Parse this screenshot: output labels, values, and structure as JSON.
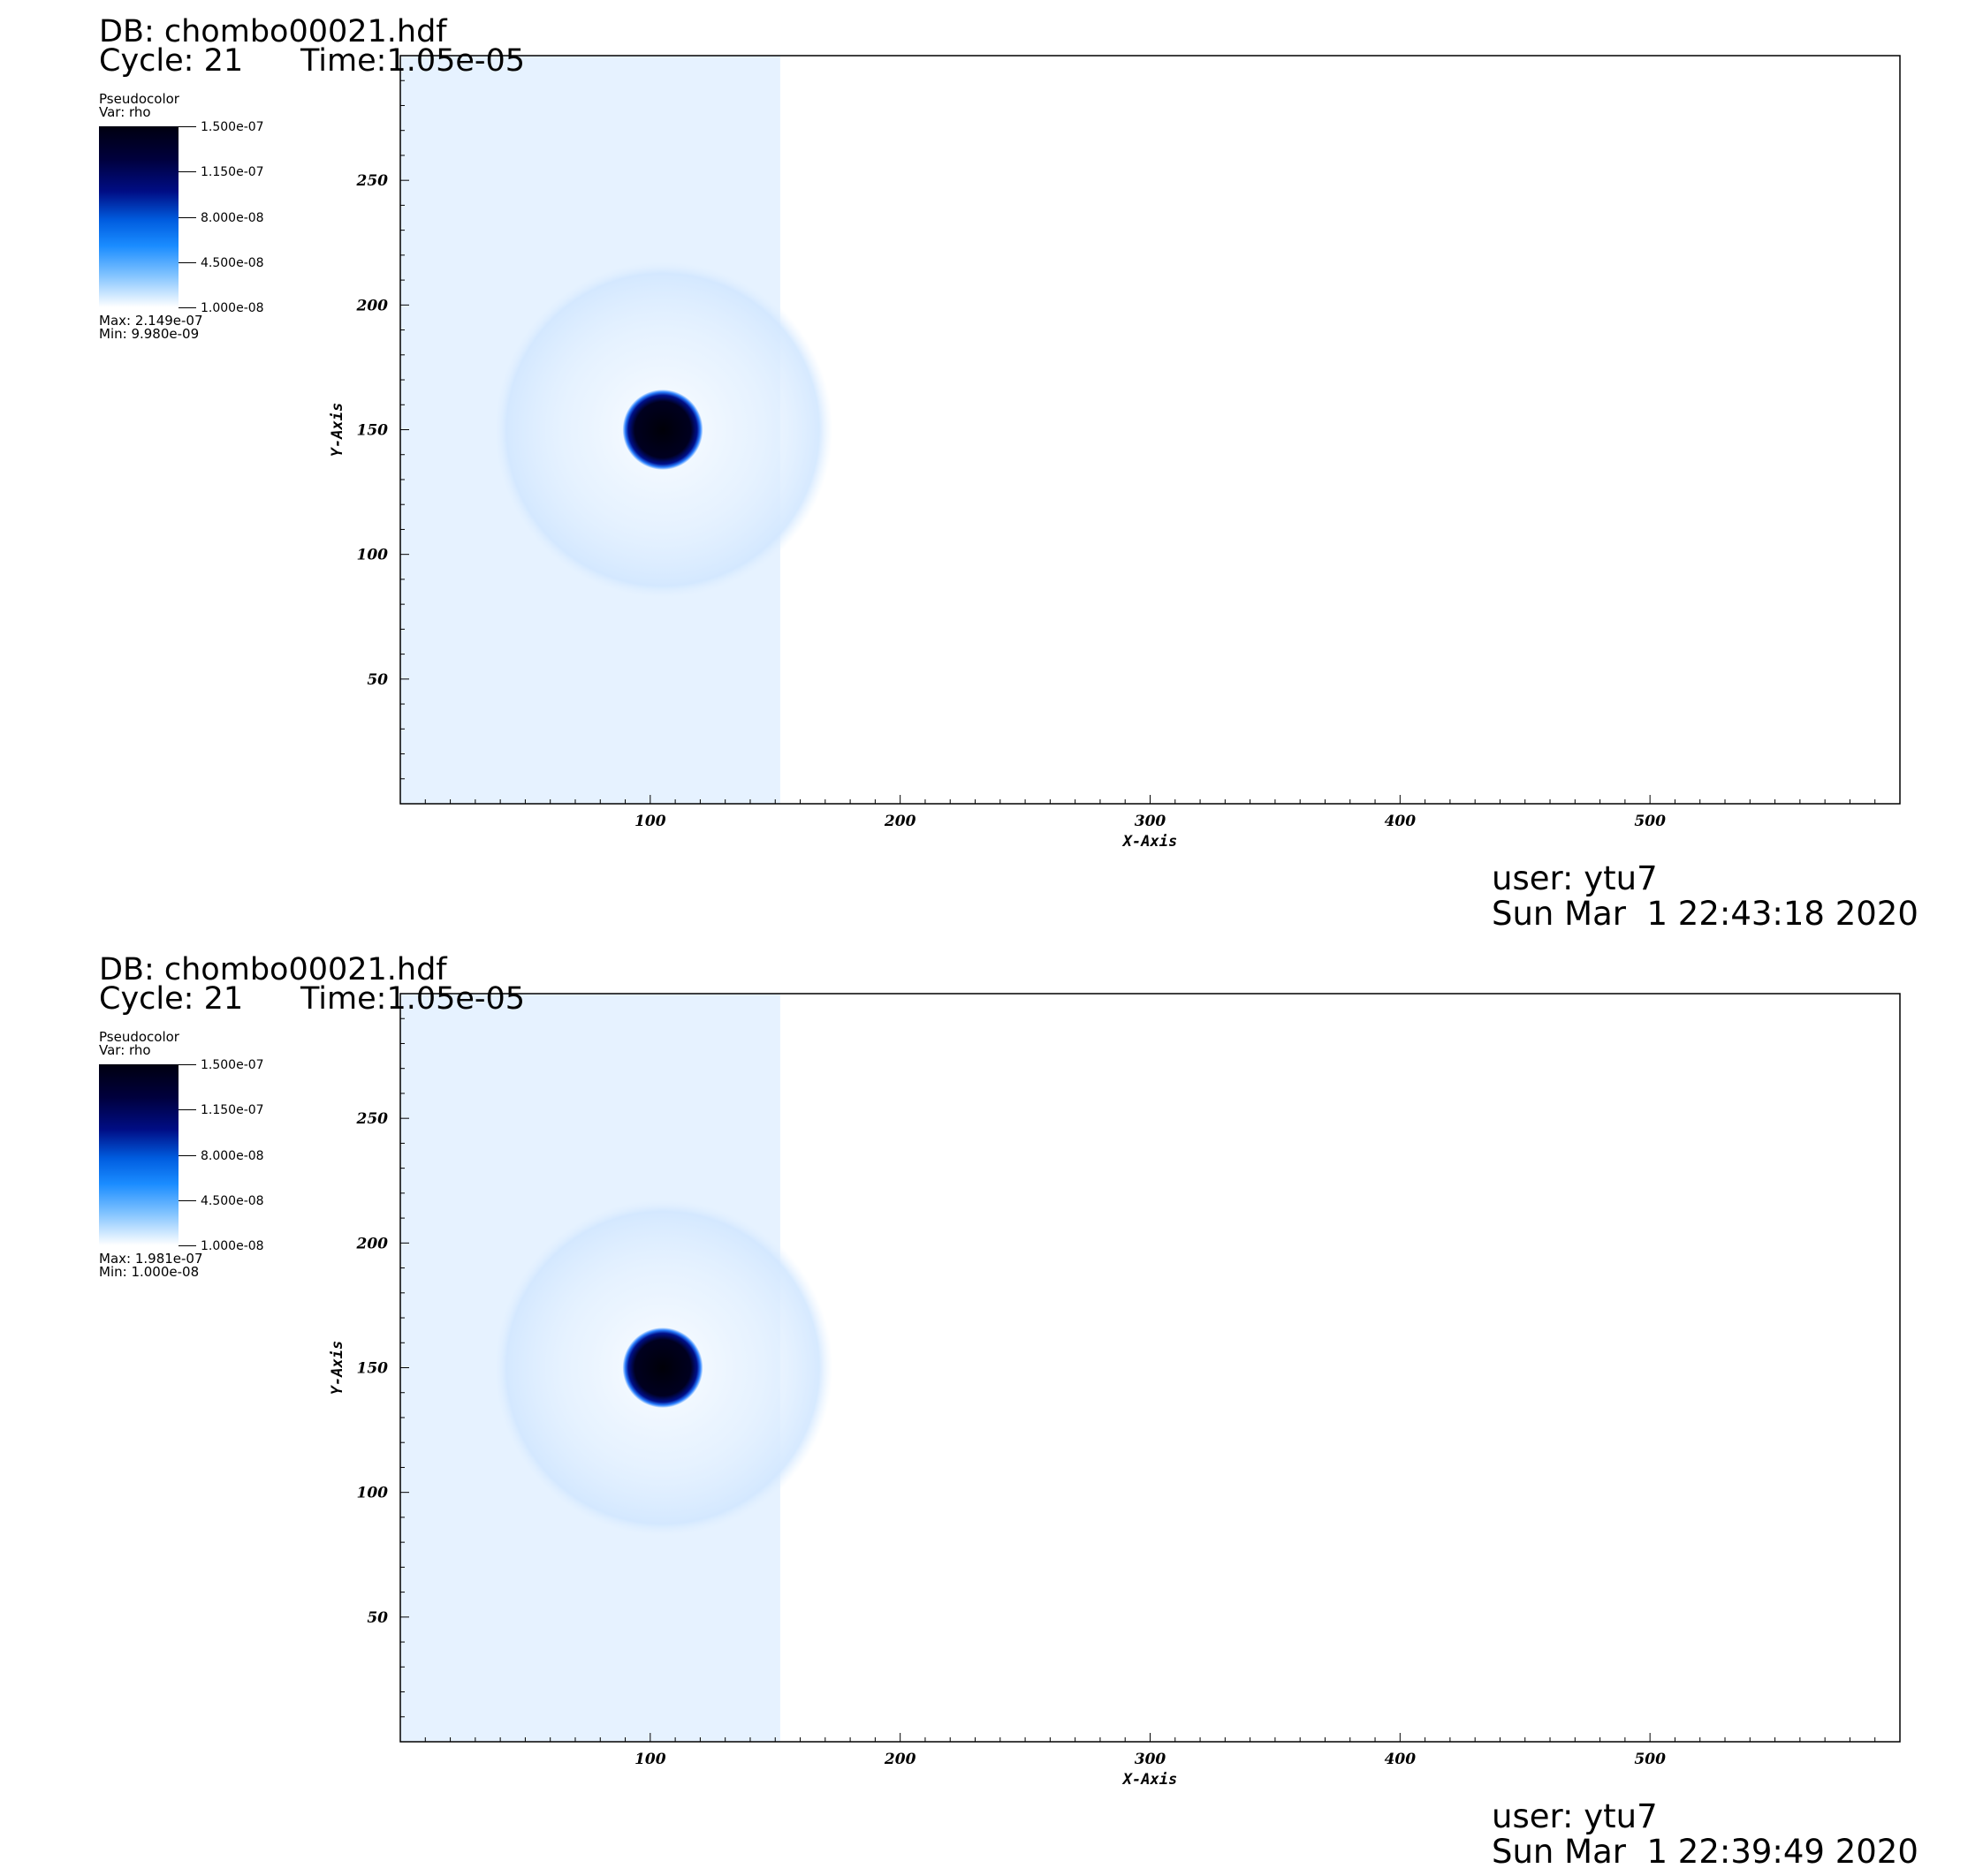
{
  "panels": [
    {
      "db": "DB: chombo00021.hdf",
      "cycle": "Cycle: 21",
      "time": "Time:1.05e-05",
      "legend": {
        "plot_type": "Pseudocolor",
        "var": "Var: rho",
        "ticks": [
          "1.500e-07",
          "1.150e-07",
          "8.000e-08",
          "4.500e-08",
          "1.000e-08"
        ],
        "max": "Max:  2.149e-07",
        "min": "Min:  9.980e-09"
      },
      "user": "user: ytu7",
      "date": "Sun Mar  1 22:43:18 2020"
    },
    {
      "db": "DB: chombo00021.hdf",
      "cycle": "Cycle: 21",
      "time": "Time:1.05e-05",
      "legend": {
        "plot_type": "Pseudocolor",
        "var": "Var: rho",
        "ticks": [
          "1.500e-07",
          "1.150e-07",
          "8.000e-08",
          "4.500e-08",
          "1.000e-08"
        ],
        "max": "Max:  1.981e-07",
        "min": "Min:  1.000e-08"
      },
      "user": "user: ytu7",
      "date": "Sun Mar  1 22:39:49 2020"
    }
  ],
  "chart_data": [
    {
      "type": "heatmap",
      "variable": "rho",
      "xlabel": "X-Axis",
      "ylabel": "Y-Axis",
      "xlim": [
        0,
        600
      ],
      "ylim": [
        0,
        300
      ],
      "xticks": [
        100,
        200,
        300,
        400,
        500
      ],
      "yticks": [
        50,
        100,
        150,
        200,
        250
      ],
      "colorscale": [
        "#ffffff",
        "#1a8cff",
        "#000d85",
        "#000010"
      ],
      "color_range": [
        1e-08,
        1.5e-07
      ],
      "filled_region_x": [
        0,
        152
      ],
      "dense_blob_center": [
        105,
        150
      ],
      "dense_blob_radius": 16,
      "shock_front_radius": 68
    },
    {
      "type": "heatmap",
      "variable": "rho",
      "xlabel": "X-Axis",
      "ylabel": "Y-Axis",
      "xlim": [
        0,
        600
      ],
      "ylim": [
        0,
        300
      ],
      "xticks": [
        100,
        200,
        300,
        400,
        500
      ],
      "yticks": [
        50,
        100,
        150,
        200,
        250
      ],
      "colorscale": [
        "#ffffff",
        "#1a8cff",
        "#000d85",
        "#000010"
      ],
      "color_range": [
        1e-08,
        1.5e-07
      ],
      "filled_region_x": [
        0,
        152
      ],
      "dense_blob_center": [
        105,
        150
      ],
      "dense_blob_radius": 16,
      "shock_front_radius": 68
    }
  ]
}
